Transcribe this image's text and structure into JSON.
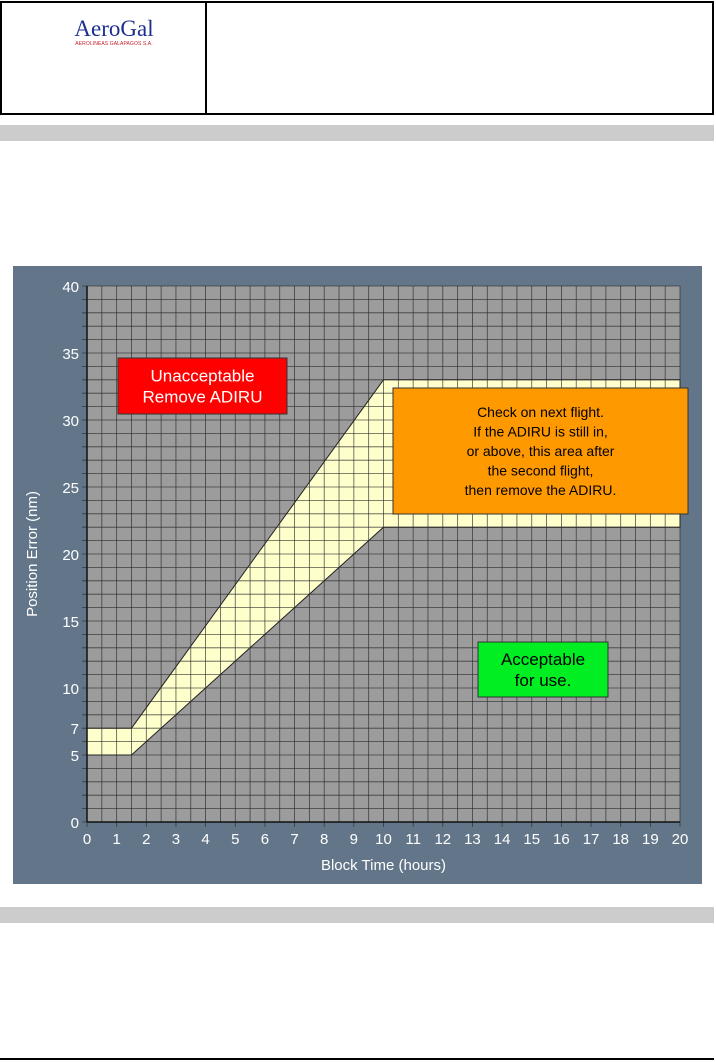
{
  "header": {
    "logo_text": "AeroGal",
    "logo_subtext": "AEROLINEAS GALAPAGOS S.A."
  },
  "chart_data": {
    "type": "area",
    "xlabel": "Block Time (hours)",
    "ylabel": "Position Error (nm)",
    "xlim": [
      0,
      20
    ],
    "ylim": [
      0,
      40
    ],
    "x_ticks": [
      0,
      1,
      2,
      3,
      4,
      5,
      6,
      7,
      8,
      9,
      10,
      11,
      12,
      13,
      14,
      15,
      16,
      17,
      18,
      19,
      20
    ],
    "y_ticks": [
      0,
      5,
      7,
      10,
      15,
      20,
      25,
      30,
      35,
      40
    ],
    "grid": true,
    "band": {
      "upper": [
        [
          0,
          7
        ],
        [
          1.5,
          7
        ],
        [
          10,
          33
        ],
        [
          20,
          33
        ]
      ],
      "lower": [
        [
          0,
          5
        ],
        [
          1.5,
          5
        ],
        [
          10,
          22
        ],
        [
          20,
          22
        ]
      ]
    },
    "annotations": [
      {
        "id": "unacceptable",
        "lines": [
          "Unacceptable",
          "Remove ADIRU"
        ],
        "color": "#ff0000"
      },
      {
        "id": "check",
        "lines": [
          "Check on next flight.",
          "If the ADIRU is still in,",
          "or above, this area after",
          "the second flight,",
          "then remove the ADIRU."
        ],
        "color": "#ff9900"
      },
      {
        "id": "acceptable",
        "lines": [
          "Acceptable",
          "for use."
        ],
        "color": "#00ee22"
      }
    ],
    "colors": {
      "panel": "#637689",
      "plot": "#9c9c9c",
      "band": "#ffffcc",
      "grid": "#2a2a2a"
    }
  }
}
